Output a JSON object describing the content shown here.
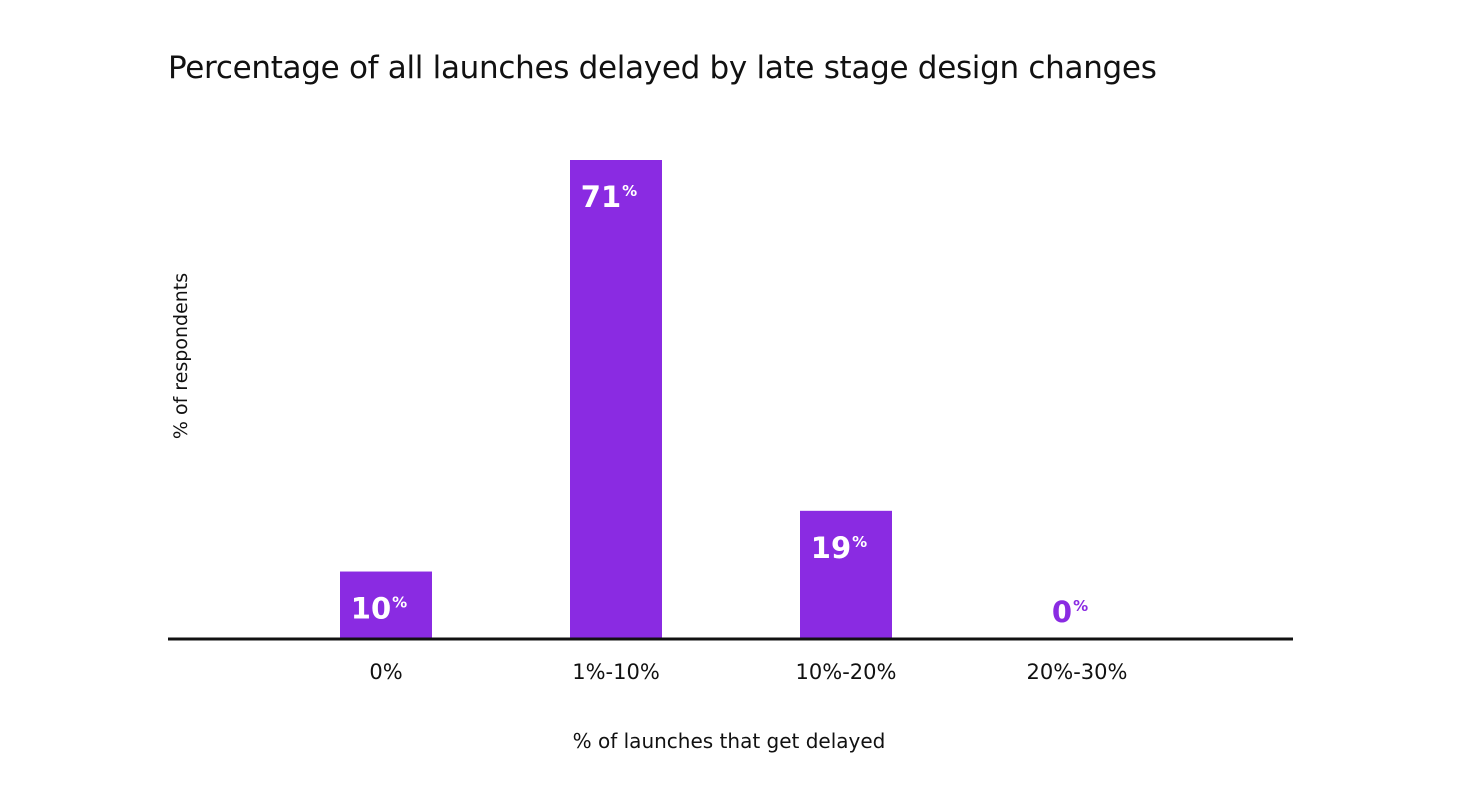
{
  "chart_data": {
    "type": "bar",
    "title": "Percentage of all launches delayed by late stage design changes",
    "xlabel": "% of launches that get delayed",
    "ylabel": "% of respondents",
    "categories": [
      "0%",
      "1%-10%",
      "10%-20%",
      "20%-30%"
    ],
    "values": [
      10,
      71,
      19,
      0
    ],
    "data_labels": [
      {
        "number": "10",
        "unit": "%"
      },
      {
        "number": "71",
        "unit": "%"
      },
      {
        "number": "19",
        "unit": "%"
      },
      {
        "number": "0",
        "unit": "%"
      }
    ],
    "ylim": [
      0,
      71
    ],
    "grid": false,
    "legend": "none",
    "bar_color": "#8a2be2",
    "label_inside_color": "#ffffff",
    "axis_color": "#111111"
  }
}
